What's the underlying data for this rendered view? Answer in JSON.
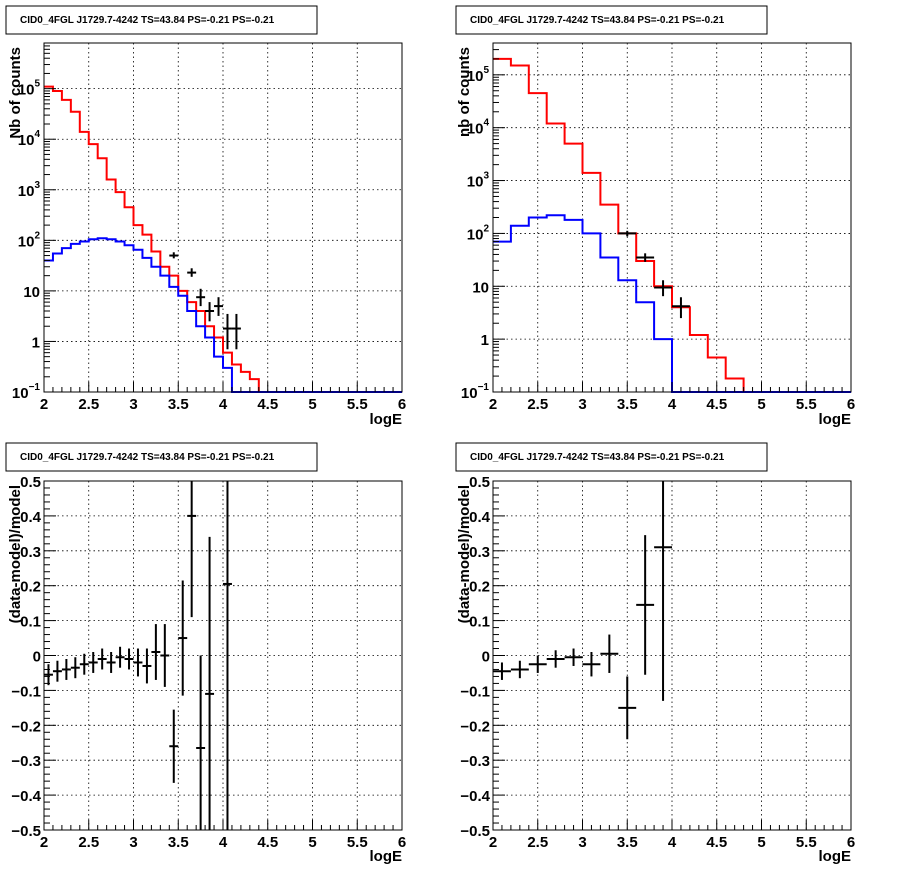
{
  "chart_data": [
    {
      "type": "line",
      "title": "CID0_4FGL J1729.7-4242 TS=43.84 PS=-0.21 PS=-0.21",
      "xlabel": "logE",
      "ylabel": "Nb of counts",
      "xlim": [
        2,
        6
      ],
      "ylim": [
        0.1,
        800000
      ],
      "log_y": true,
      "grid": true,
      "x_ticks": [
        "2",
        "2.5",
        "3",
        "3.5",
        "4",
        "4.5",
        "5",
        "5.5",
        "6"
      ],
      "y_ticks": [
        {
          "value": 0.1,
          "label": "10",
          "exp": "−1"
        },
        {
          "value": 1,
          "label": "1",
          "exp": ""
        },
        {
          "value": 10,
          "label": "10",
          "exp": ""
        },
        {
          "value": 100,
          "label": "10",
          "exp": "2"
        },
        {
          "value": 1000,
          "label": "10",
          "exp": "3"
        },
        {
          "value": 10000,
          "label": "10",
          "exp": "4"
        },
        {
          "value": 100000,
          "label": "10",
          "exp": "5"
        }
      ],
      "bin_edges": [
        2.0,
        2.1,
        2.2,
        2.3,
        2.4,
        2.5,
        2.6,
        2.7,
        2.8,
        2.9,
        3.0,
        3.1,
        3.2,
        3.3,
        3.4,
        3.5,
        3.6,
        3.7,
        3.8,
        3.9,
        4.0,
        4.1,
        4.2,
        4.3,
        4.4,
        4.5,
        4.6,
        4.7,
        4.8,
        4.9,
        5.0,
        5.1,
        5.2,
        5.3,
        5.4,
        5.5,
        5.6,
        5.7,
        5.8,
        5.9,
        6.0
      ],
      "series": [
        {
          "color": "#ff0000",
          "values": [
            110000,
            90000,
            60000,
            35000,
            14000,
            8000,
            4200,
            1600,
            900,
            450,
            200,
            130,
            60,
            30,
            20,
            10,
            6,
            4,
            2,
            1.2,
            0.6,
            0.35,
            0.25,
            0.18,
            0.1,
            0.1,
            0.1,
            0.1,
            0.1,
            0.1,
            0.1,
            0.1,
            0.1,
            0.1,
            0.1,
            0.1,
            0.1,
            0.1,
            0.1,
            0.1
          ]
        },
        {
          "color": "#000000",
          "values": [
            110000,
            90000,
            60000,
            35000,
            14000,
            8000,
            4200,
            1600,
            900,
            450,
            200,
            130,
            60,
            30,
            20,
            10,
            6,
            4,
            2,
            1.2,
            0.6,
            0.35,
            0.25,
            0.18,
            0.1,
            0.1,
            0.1,
            0.1,
            0.1,
            0.1,
            0.1,
            0.1,
            0.1,
            0.1,
            0.1,
            0.1,
            0.1,
            0.1,
            0.1,
            0.1
          ]
        },
        {
          "color": "#0000ff",
          "values": [
            40,
            55,
            70,
            85,
            95,
            105,
            110,
            105,
            95,
            80,
            65,
            45,
            30,
            20,
            12,
            8,
            4,
            2,
            1.2,
            0.5,
            0.3,
            0.1,
            0.1,
            0.1,
            0.1,
            0.1,
            0.1,
            0.1,
            0.1,
            0.1,
            0.1,
            0.1,
            0.1,
            0.1,
            0.1,
            0.1,
            0.1,
            0.1,
            0.1,
            0.1
          ]
        }
      ],
      "points": [
        {
          "x": 3.45,
          "xerr": 0.05,
          "y": 50,
          "ylo": 44,
          "yhi": 58
        },
        {
          "x": 3.65,
          "xerr": 0.05,
          "y": 23,
          "ylo": 19,
          "yhi": 28
        },
        {
          "x": 3.75,
          "xerr": 0.05,
          "y": 7.5,
          "ylo": 5,
          "yhi": 11
        },
        {
          "x": 3.85,
          "xerr": 0.05,
          "y": 4,
          "ylo": 2.5,
          "yhi": 6
        },
        {
          "x": 3.95,
          "xerr": 0.05,
          "y": 5,
          "ylo": 3.2,
          "yhi": 7.5
        },
        {
          "x": 4.05,
          "xerr": 0.05,
          "y": 1.8,
          "ylo": 0.7,
          "yhi": 3.5
        },
        {
          "x": 4.15,
          "xerr": 0.05,
          "y": 1.8,
          "ylo": 0.7,
          "yhi": 3.5
        }
      ]
    },
    {
      "type": "line",
      "title": "CID0_4FGL J1729.7-4242 TS=43.84 PS=-0.21 PS=-0.21",
      "xlabel": "logE",
      "ylabel": "nb of counts",
      "xlim": [
        2,
        6
      ],
      "ylim": [
        0.1,
        400000
      ],
      "log_y": true,
      "grid": true,
      "x_ticks": [
        "2",
        "2.5",
        "3",
        "3.5",
        "4",
        "4.5",
        "5",
        "5.5",
        "6"
      ],
      "y_ticks": [
        {
          "value": 0.1,
          "label": "10",
          "exp": "−1"
        },
        {
          "value": 1,
          "label": "1",
          "exp": ""
        },
        {
          "value": 10,
          "label": "10",
          "exp": ""
        },
        {
          "value": 100,
          "label": "10",
          "exp": "2"
        },
        {
          "value": 1000,
          "label": "10",
          "exp": "3"
        },
        {
          "value": 10000,
          "label": "10",
          "exp": "4"
        },
        {
          "value": 100000,
          "label": "10",
          "exp": "5"
        }
      ],
      "bin_edges": [
        2.0,
        2.2,
        2.4,
        2.6,
        2.8,
        3.0,
        3.2,
        3.4,
        3.6,
        3.8,
        4.0,
        4.2,
        4.4,
        4.6,
        4.8,
        5.0,
        5.2,
        5.4,
        5.6,
        5.8,
        6.0
      ],
      "series": [
        {
          "color": "#ff0000",
          "values": [
            200000,
            150000,
            45000,
            12000,
            5000,
            1400,
            350,
            100,
            30,
            10,
            4,
            1.2,
            0.45,
            0.18,
            0.1,
            0.1,
            0.1,
            0.1,
            0.1,
            0.1
          ]
        },
        {
          "color": "#000000",
          "values": [
            200000,
            150000,
            45000,
            12000,
            5000,
            1400,
            350,
            100,
            30,
            10,
            4,
            1.2,
            0.45,
            0.18,
            0.1,
            0.1,
            0.1,
            0.1,
            0.1,
            0.1
          ]
        },
        {
          "color": "#0000ff",
          "values": [
            70,
            140,
            200,
            220,
            180,
            100,
            35,
            13,
            5,
            1,
            0.1,
            0.1,
            0.1,
            0.1,
            0.1,
            0.1,
            0.1,
            0.1,
            0.1,
            0.1
          ]
        }
      ],
      "points": [
        {
          "x": 3.5,
          "xerr": 0.1,
          "y": 100,
          "ylo": 88,
          "yhi": 112
        },
        {
          "x": 3.7,
          "xerr": 0.1,
          "y": 35,
          "ylo": 29,
          "yhi": 42
        },
        {
          "x": 3.9,
          "xerr": 0.1,
          "y": 9.5,
          "ylo": 6.5,
          "yhi": 13
        },
        {
          "x": 4.1,
          "xerr": 0.1,
          "y": 4.2,
          "ylo": 2.5,
          "yhi": 6.2
        }
      ]
    },
    {
      "type": "scatter",
      "title": "CID0_4FGL J1729.7-4242 TS=43.84 PS=-0.21 PS=-0.21",
      "xlabel": "logE",
      "ylabel": "(data-model)/model",
      "xlim": [
        2,
        6
      ],
      "ylim": [
        -0.5,
        0.5
      ],
      "grid": true,
      "x_ticks": [
        "2",
        "2.5",
        "3",
        "3.5",
        "4",
        "4.5",
        "5",
        "5.5",
        "6"
      ],
      "y_ticks": [
        "−0.5",
        "−0.4",
        "−0.3",
        "−0.2",
        "−0.1",
        "0",
        "0.1",
        "0.2",
        "0.3",
        "0.4",
        "0.5"
      ],
      "points": [
        {
          "x": 2.05,
          "xerr": 0.05,
          "y": -0.055,
          "yerr": 0.03
        },
        {
          "x": 2.15,
          "xerr": 0.05,
          "y": -0.045,
          "yerr": 0.03
        },
        {
          "x": 2.25,
          "xerr": 0.05,
          "y": -0.04,
          "yerr": 0.03
        },
        {
          "x": 2.35,
          "xerr": 0.05,
          "y": -0.035,
          "yerr": 0.03
        },
        {
          "x": 2.45,
          "xerr": 0.05,
          "y": -0.025,
          "yerr": 0.03
        },
        {
          "x": 2.55,
          "xerr": 0.05,
          "y": -0.02,
          "yerr": 0.03
        },
        {
          "x": 2.65,
          "xerr": 0.05,
          "y": -0.01,
          "yerr": 0.03
        },
        {
          "x": 2.75,
          "xerr": 0.05,
          "y": -0.02,
          "yerr": 0.03
        },
        {
          "x": 2.85,
          "xerr": 0.05,
          "y": -0.005,
          "yerr": 0.03
        },
        {
          "x": 2.95,
          "xerr": 0.05,
          "y": -0.01,
          "yerr": 0.03
        },
        {
          "x": 3.05,
          "xerr": 0.05,
          "y": -0.02,
          "yerr": 0.04
        },
        {
          "x": 3.15,
          "xerr": 0.05,
          "y": -0.03,
          "yerr": 0.05
        },
        {
          "x": 3.25,
          "xerr": 0.05,
          "y": 0.01,
          "yerr": 0.08
        },
        {
          "x": 3.35,
          "xerr": 0.05,
          "y": 0.0,
          "yerr": 0.09
        },
        {
          "x": 3.45,
          "xerr": 0.05,
          "y": -0.26,
          "yerr": 0.105
        },
        {
          "x": 3.55,
          "xerr": 0.05,
          "y": 0.05,
          "yerr": 0.165
        },
        {
          "x": 3.65,
          "xerr": 0.05,
          "y": 0.4,
          "yerr": 0.29
        },
        {
          "x": 3.75,
          "xerr": 0.05,
          "y": -0.265,
          "yerr": 0.265
        },
        {
          "x": 3.85,
          "xerr": 0.05,
          "y": -0.11,
          "yerr": 0.45
        },
        {
          "x": 4.05,
          "xerr": 0.05,
          "y": 0.205,
          "yerr": 0.9
        }
      ]
    },
    {
      "type": "scatter",
      "title": "CID0_4FGL J1729.7-4242 TS=43.84 PS=-0.21 PS=-0.21",
      "xlabel": "logE",
      "ylabel": "(data-model)/model",
      "xlim": [
        2,
        6
      ],
      "ylim": [
        -0.5,
        0.5
      ],
      "grid": true,
      "x_ticks": [
        "2",
        "2.5",
        "3",
        "3.5",
        "4",
        "4.5",
        "5",
        "5.5",
        "6"
      ],
      "y_ticks": [
        "−0.5",
        "−0.4",
        "−0.3",
        "−0.2",
        "−0.1",
        "0",
        "0.1",
        "0.2",
        "0.3",
        "0.4",
        "0.5"
      ],
      "points": [
        {
          "x": 2.1,
          "xerr": 0.1,
          "y": -0.045,
          "yerr": 0.025
        },
        {
          "x": 2.3,
          "xerr": 0.1,
          "y": -0.04,
          "yerr": 0.025
        },
        {
          "x": 2.5,
          "xerr": 0.1,
          "y": -0.025,
          "yerr": 0.025
        },
        {
          "x": 2.7,
          "xerr": 0.1,
          "y": -0.01,
          "yerr": 0.025
        },
        {
          "x": 2.9,
          "xerr": 0.1,
          "y": -0.005,
          "yerr": 0.025
        },
        {
          "x": 3.1,
          "xerr": 0.1,
          "y": -0.025,
          "yerr": 0.035
        },
        {
          "x": 3.3,
          "xerr": 0.1,
          "y": 0.005,
          "yerr": 0.055
        },
        {
          "x": 3.5,
          "xerr": 0.1,
          "y": -0.15,
          "yerr": 0.09
        },
        {
          "x": 3.7,
          "xerr": 0.1,
          "y": 0.145,
          "yerr": 0.2
        },
        {
          "x": 3.9,
          "xerr": 0.1,
          "y": 0.31,
          "yerr": 0.44
        }
      ]
    }
  ]
}
